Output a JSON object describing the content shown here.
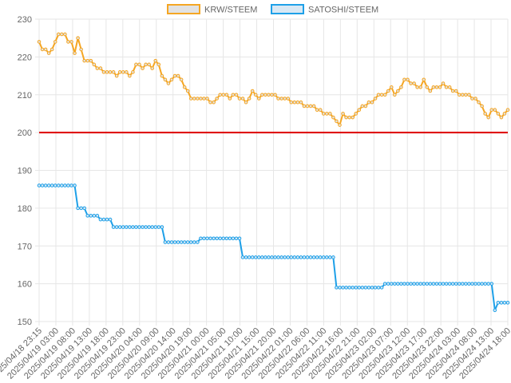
{
  "chart_data": {
    "type": "line",
    "ylim": [
      150,
      230
    ],
    "yticks": [
      150,
      160,
      170,
      180,
      190,
      200,
      210,
      220,
      230
    ],
    "reference_line": {
      "value": 200,
      "color": "#dd0000"
    },
    "legend": {
      "placement": "top-center"
    },
    "grid": true,
    "xticks": [
      "2025/04/18 23:15",
      "2025/04/19 03:00",
      "2025/04/19 08:00",
      "2025/04/19 13:00",
      "2025/04/19 18:00",
      "2025/04/19 23:00",
      "2025/04/20 04:00",
      "2025/04/20 09:00",
      "2025/04/20 14:00",
      "2025/04/20 19:00",
      "2025/04/21 00:00",
      "2025/04/21 05:00",
      "2025/04/21 10:00",
      "2025/04/21 15:00",
      "2025/04/21 20:00",
      "2025/04/22 01:00",
      "2025/04/22 06:00",
      "2025/04/22 11:00",
      "2025/04/22 16:00",
      "2025/04/22 21:00",
      "2025/04/23 02:00",
      "2025/04/23 07:00",
      "2025/04/23 12:00",
      "2025/04/23 17:00",
      "2025/04/23 22:00",
      "2025/04/24 03:00",
      "2025/04/24 08:00",
      "2025/04/24 13:00",
      "2025/04/24 18:00"
    ],
    "series": [
      {
        "name": "KRW/STEEM",
        "color": "#f5a623",
        "fill": "#e2e2e2",
        "values": [
          224,
          222,
          222,
          221,
          222,
          224,
          226,
          226,
          226,
          224,
          224,
          221,
          225,
          222,
          219,
          219,
          219,
          218,
          217,
          217,
          216,
          216,
          216,
          216,
          215,
          216,
          216,
          216,
          215,
          216,
          218,
          218,
          217,
          218,
          218,
          217,
          219,
          218,
          215,
          214,
          213,
          214,
          215,
          215,
          214,
          212,
          211,
          209,
          209,
          209,
          209,
          209,
          209,
          208,
          208,
          209,
          210,
          210,
          210,
          209,
          210,
          210,
          209,
          209,
          208,
          209,
          211,
          210,
          209,
          210,
          210,
          210,
          210,
          210,
          209,
          209,
          209,
          209,
          208,
          208,
          208,
          208,
          207,
          207,
          207,
          207,
          206,
          206,
          205,
          205,
          205,
          204,
          203,
          202,
          205,
          204,
          204,
          204,
          205,
          206,
          207,
          207,
          208,
          208,
          209,
          210,
          210,
          210,
          211,
          212,
          210,
          211,
          212,
          214,
          214,
          213,
          213,
          212,
          212,
          214,
          212,
          211,
          212,
          212,
          212,
          213,
          212,
          212,
          211,
          211,
          210,
          210,
          210,
          210,
          209,
          209,
          208,
          207,
          205,
          204,
          206,
          206,
          205,
          204,
          205,
          206
        ]
      },
      {
        "name": "SATOSHI/STEEM",
        "color": "#1ea0e8",
        "fill": "#d8e8f4",
        "values": [
          186,
          186,
          186,
          186,
          186,
          186,
          186,
          186,
          186,
          186,
          186,
          186,
          180,
          180,
          180,
          178,
          178,
          178,
          178,
          177,
          177,
          177,
          177,
          175,
          175,
          175,
          175,
          175,
          175,
          175,
          175,
          175,
          175,
          175,
          175,
          175,
          175,
          175,
          175,
          171,
          171,
          171,
          171,
          171,
          171,
          171,
          171,
          171,
          171,
          171,
          172,
          172,
          172,
          172,
          172,
          172,
          172,
          172,
          172,
          172,
          172,
          172,
          172,
          167,
          167,
          167,
          167,
          167,
          167,
          167,
          167,
          167,
          167,
          167,
          167,
          167,
          167,
          167,
          167,
          167,
          167,
          167,
          167,
          167,
          167,
          167,
          167,
          167,
          167,
          167,
          167,
          167,
          159,
          159,
          159,
          159,
          159,
          159,
          159,
          159,
          159,
          159,
          159,
          159,
          159,
          159,
          159,
          160,
          160,
          160,
          160,
          160,
          160,
          160,
          160,
          160,
          160,
          160,
          160,
          160,
          160,
          160,
          160,
          160,
          160,
          160,
          160,
          160,
          160,
          160,
          160,
          160,
          160,
          160,
          160,
          160,
          160,
          160,
          160,
          160,
          160,
          153,
          155,
          155,
          155,
          155
        ]
      }
    ]
  }
}
